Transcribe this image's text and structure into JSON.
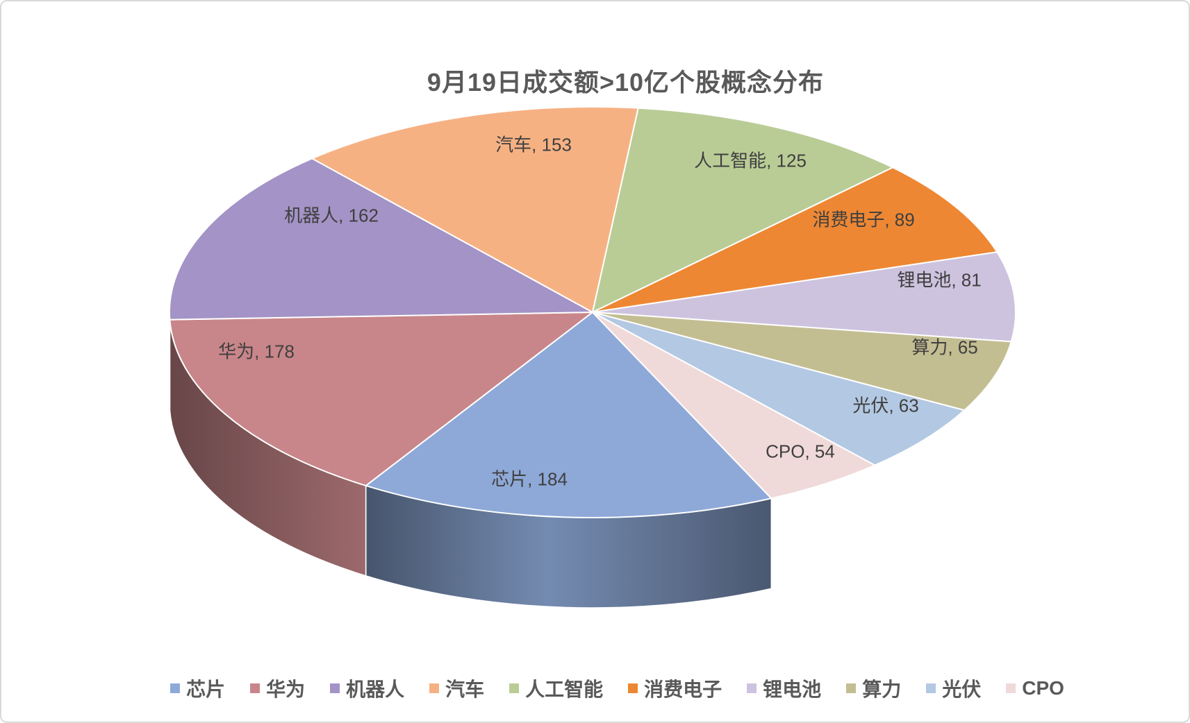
{
  "chart_data": {
    "type": "pie",
    "style": "3d",
    "title": "9月19日成交额>10亿个股概念分布",
    "legend_position": "bottom",
    "direction": "clockwise",
    "start_angle_deg": 155,
    "total": 1154,
    "data_label_format": "{label}, {value}",
    "slices": [
      {
        "label": "芯片",
        "value": 184,
        "color": "#8EA9D8"
      },
      {
        "label": "华为",
        "value": 178,
        "color": "#C8868A"
      },
      {
        "label": "机器人",
        "value": 162,
        "color": "#A393C6"
      },
      {
        "label": "汽车",
        "value": 153,
        "color": "#F6B183"
      },
      {
        "label": "人工智能",
        "value": 125,
        "color": "#B9CC96"
      },
      {
        "label": "消费电子",
        "value": 89,
        "color": "#EE8733"
      },
      {
        "label": "锂电池",
        "value": 81,
        "color": "#CDC3DF"
      },
      {
        "label": "算力",
        "value": 65,
        "color": "#C3BD92"
      },
      {
        "label": "光伏",
        "value": 63,
        "color": "#B3C8E2"
      },
      {
        "label": "CPO",
        "value": 54,
        "color": "#F0D9D9"
      }
    ],
    "colors": {
      "title_text": "#595959",
      "data_label_text": "#3F3F3F",
      "legend_text": "#595959",
      "slice_border": "#FFFFFF",
      "frame_border": "#D9D9D9",
      "background": "#FFFFFF"
    }
  }
}
